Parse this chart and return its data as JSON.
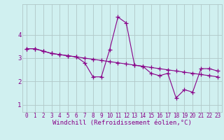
{
  "xlabel": "Windchill (Refroidissement éolien,°C)",
  "line1_x": [
    0,
    1,
    2,
    3,
    4,
    5,
    6,
    7,
    8,
    9,
    10,
    11,
    12,
    13,
    14,
    15,
    16,
    17,
    18,
    19,
    20,
    21,
    22,
    23
  ],
  "line1_y": [
    3.4,
    3.4,
    3.3,
    3.2,
    3.15,
    3.1,
    3.05,
    2.8,
    2.2,
    2.2,
    3.35,
    4.75,
    4.5,
    2.7,
    2.65,
    2.35,
    2.25,
    2.35,
    1.3,
    1.65,
    1.55,
    2.55,
    2.55,
    2.45
  ],
  "line2_x": [
    0,
    1,
    2,
    3,
    4,
    5,
    6,
    7,
    8,
    9,
    10,
    11,
    12,
    13,
    14,
    15,
    16,
    17,
    18,
    19,
    20,
    21,
    22,
    23
  ],
  "line2_y": [
    3.4,
    3.4,
    3.3,
    3.2,
    3.15,
    3.1,
    3.05,
    3.0,
    2.95,
    2.9,
    2.85,
    2.8,
    2.75,
    2.7,
    2.65,
    2.6,
    2.55,
    2.5,
    2.45,
    2.4,
    2.35,
    2.3,
    2.25,
    2.2
  ],
  "line_color": "#880088",
  "bg_color": "#d0f0f0",
  "grid_color": "#b0c8c8",
  "ylim": [
    0.7,
    5.3
  ],
  "xlim": [
    -0.5,
    23.5
  ],
  "yticks": [
    1,
    2,
    3,
    4
  ],
  "xticks": [
    0,
    1,
    2,
    3,
    4,
    5,
    6,
    7,
    8,
    9,
    10,
    11,
    12,
    13,
    14,
    15,
    16,
    17,
    18,
    19,
    20,
    21,
    22,
    23
  ],
  "marker": "+",
  "markersize": 4,
  "linewidth": 0.8,
  "xlabel_fontsize": 6.5,
  "tick_fontsize": 5.5
}
